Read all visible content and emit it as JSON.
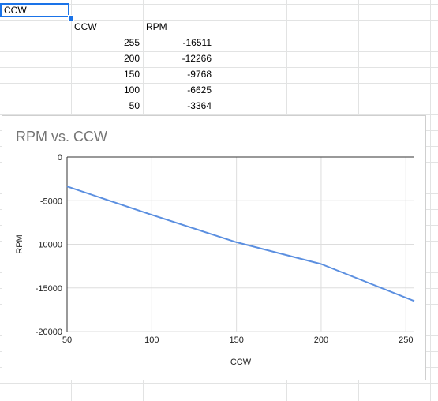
{
  "sheet": {
    "name_box": "CCW",
    "header_ccw": "CCW",
    "header_rpm": "RPM",
    "rows": [
      {
        "ccw": "255",
        "rpm": "-16511"
      },
      {
        "ccw": "200",
        "rpm": "-12266"
      },
      {
        "ccw": "150",
        "rpm": "-9768"
      },
      {
        "ccw": "100",
        "rpm": "-6625"
      },
      {
        "ccw": "50",
        "rpm": "-3364"
      }
    ]
  },
  "chart_data": {
    "type": "line",
    "title": "RPM vs. CCW",
    "xlabel": "CCW",
    "ylabel": "RPM",
    "x": [
      50,
      100,
      150,
      200,
      255
    ],
    "series": [
      {
        "values": [
          -3364,
          -6625,
          -9768,
          -12266,
          -16511
        ],
        "color": "#5b8fe0"
      }
    ],
    "xlim": [
      50,
      255
    ],
    "ylim": [
      -20000,
      0
    ],
    "xticks": [
      "50",
      "100",
      "150",
      "200",
      "250"
    ],
    "yticks": [
      "0",
      "-5000",
      "-10000",
      "-15000",
      "-20000"
    ],
    "grid": true
  }
}
